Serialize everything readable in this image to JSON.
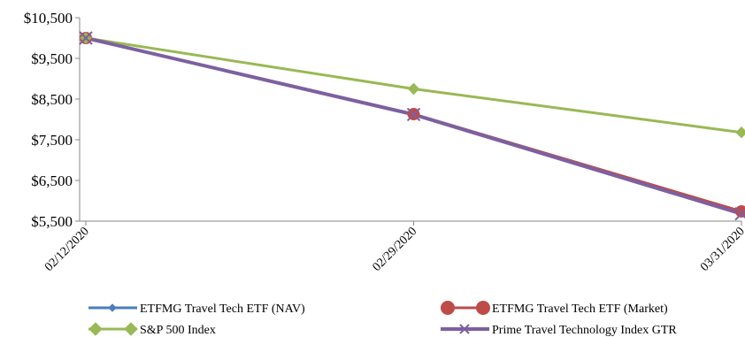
{
  "chart_data": {
    "type": "line",
    "title": "",
    "xlabel": "",
    "ylabel": "",
    "x": [
      "02/12/2020",
      "02/29/2020",
      "03/31/2020"
    ],
    "ylim": [
      5500,
      10500
    ],
    "yticks": [
      5500,
      6500,
      7500,
      8500,
      9500,
      10500
    ],
    "ytick_labels": [
      "$5,500",
      "$6,500",
      "$7,500",
      "$8,500",
      "$9,500",
      "$10,500"
    ],
    "grid": false,
    "legend_placement": "bottom",
    "series": [
      {
        "name": "ETFMG Travel Tech ETF (NAV)",
        "values": [
          10000,
          8130,
          5730
        ],
        "color": "#4a7ebb",
        "marker": "diamond"
      },
      {
        "name": "ETFMG Travel Tech ETF  (Market)",
        "values": [
          10000,
          8130,
          5740
        ],
        "color": "#be4b48",
        "marker": "circle"
      },
      {
        "name": "S&P 500 Index",
        "values": [
          10000,
          8750,
          7680
        ],
        "color": "#98b954",
        "marker": "diamond"
      },
      {
        "name": "Prime Travel Technology Index GTR",
        "values": [
          10000,
          8120,
          5680
        ],
        "color": "#7d60a0",
        "marker": "x"
      }
    ]
  }
}
